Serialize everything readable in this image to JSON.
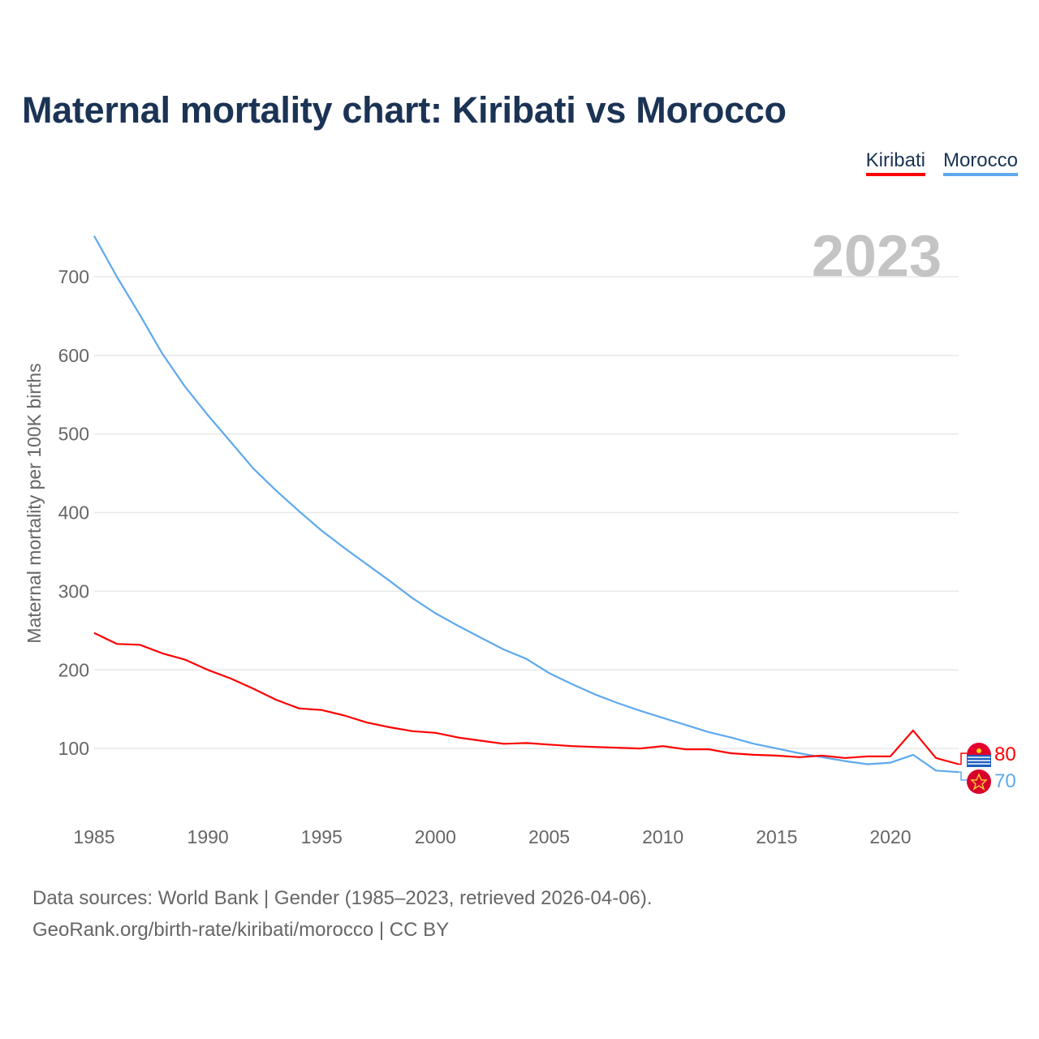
{
  "title": "Maternal mortality chart: Kiribati vs Morocco",
  "legend": [
    {
      "label": "Kiribati",
      "color": "#ff0000"
    },
    {
      "label": "Morocco",
      "color": "#5ea9ee"
    }
  ],
  "year_watermark": "2023",
  "footer": {
    "line1": "Data sources: World Bank | Gender (1985–2023, retrieved 2026-04-06).",
    "line2": "GeoRank.org/birth-rate/kiribati/morocco | CC BY"
  },
  "chart_data": {
    "type": "line",
    "title": "Maternal mortality chart: Kiribati vs Morocco",
    "xlabel": "",
    "ylabel": "Maternal mortality per 100K births",
    "xlim": [
      1985,
      2023
    ],
    "ylim": [
      0,
      760
    ],
    "grid": true,
    "legend_position": "top-right",
    "x_ticks": [
      "1985",
      "1990",
      "1995",
      "2000",
      "2005",
      "2010",
      "2015",
      "2020"
    ],
    "y_ticks": [
      "100",
      "200",
      "300",
      "400",
      "500",
      "600",
      "700"
    ],
    "x": [
      1985,
      1986,
      1987,
      1988,
      1989,
      1990,
      1991,
      1992,
      1993,
      1994,
      1995,
      1996,
      1997,
      1998,
      1999,
      2000,
      2001,
      2002,
      2003,
      2004,
      2005,
      2006,
      2007,
      2008,
      2009,
      2010,
      2011,
      2012,
      2013,
      2014,
      2015,
      2016,
      2017,
      2018,
      2019,
      2020,
      2021,
      2022,
      2023
    ],
    "series": [
      {
        "name": "Kiribati",
        "color": "#ff0000",
        "end_label": "80",
        "values": [
          247,
          233,
          232,
          221,
          213,
          200,
          189,
          176,
          162,
          151,
          149,
          142,
          133,
          127,
          122,
          120,
          114,
          110,
          106,
          107,
          105,
          103,
          102,
          101,
          100,
          103,
          99,
          99,
          94,
          92,
          91,
          89,
          91,
          88,
          90,
          90,
          123,
          88,
          80
        ]
      },
      {
        "name": "Morocco",
        "color": "#5ea9ee",
        "end_label": "70",
        "values": [
          752,
          700,
          652,
          602,
          560,
          524,
          490,
          456,
          428,
          402,
          377,
          355,
          334,
          313,
          291,
          272,
          256,
          241,
          226,
          214,
          196,
          182,
          169,
          158,
          148,
          139,
          130,
          121,
          114,
          106,
          100,
          94,
          89,
          84,
          80,
          82,
          92,
          72,
          70
        ]
      }
    ]
  }
}
